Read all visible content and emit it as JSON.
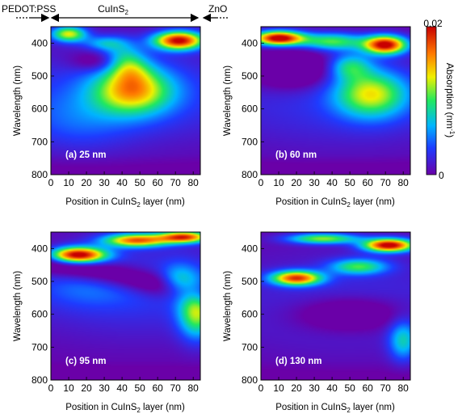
{
  "figure": {
    "layer_header": {
      "left": "PEDOT:PSS",
      "middle": "CuInS",
      "middle_sub": "2",
      "right": "ZnO"
    },
    "colorbar": {
      "max_label": "0.02",
      "min_label": "0",
      "title": "Absorption (nm",
      "title_sup": "-1",
      "title_end": ")"
    }
  },
  "chart_data": [
    {
      "type": "heatmap",
      "panel_label": "(a) 25 nm",
      "xlabel": "Position in CuInS",
      "xlabel_sub": "2",
      "xlabel_end": " layer (nm)",
      "ylabel": "Wavelength (nm)",
      "xlim": [
        0,
        84
      ],
      "ylim": [
        350,
        800
      ],
      "y_inverted": true,
      "xticks": [
        0,
        10,
        20,
        30,
        40,
        50,
        60,
        70,
        80
      ],
      "yticks": [
        400,
        500,
        600,
        700,
        800
      ],
      "zlim": [
        0,
        0.02
      ],
      "hotspots": [
        {
          "x": 72,
          "y": 390,
          "value": 0.02
        },
        {
          "x": 45,
          "y": 545,
          "value": 0.0118
        },
        {
          "x": 10,
          "y": 370,
          "value": 0.013
        }
      ]
    },
    {
      "type": "heatmap",
      "panel_label": "(b) 60 nm",
      "xlabel": "Position in CuInS",
      "xlabel_sub": "2",
      "xlabel_end": " layer (nm)",
      "ylabel": "Wavelength (nm)",
      "xlim": [
        0,
        84
      ],
      "ylim": [
        350,
        800
      ],
      "y_inverted": true,
      "xticks": [
        0,
        10,
        20,
        30,
        40,
        50,
        60,
        70,
        80
      ],
      "yticks": [
        400,
        500,
        600,
        700,
        800
      ],
      "zlim": [
        0,
        0.02
      ],
      "hotspots": [
        {
          "x": 10,
          "y": 385,
          "value": 0.02
        },
        {
          "x": 70,
          "y": 405,
          "value": 0.02
        },
        {
          "x": 62,
          "y": 555,
          "value": 0.0105
        }
      ]
    },
    {
      "type": "heatmap",
      "panel_label": "(c) 95 nm",
      "xlabel": "Position in CuInS",
      "xlabel_sub": "2",
      "xlabel_end": " layer (nm)",
      "ylabel": "Wavelength (nm)",
      "xlim": [
        0,
        84
      ],
      "ylim": [
        350,
        800
      ],
      "y_inverted": true,
      "xticks": [
        0,
        10,
        20,
        30,
        40,
        50,
        60,
        70,
        80
      ],
      "yticks": [
        400,
        500,
        600,
        700,
        800
      ],
      "zlim": [
        0,
        0.02
      ],
      "hotspots": [
        {
          "x": 15,
          "y": 420,
          "value": 0.02
        },
        {
          "x": 48,
          "y": 375,
          "value": 0.016
        },
        {
          "x": 82,
          "y": 580,
          "value": 0.0115
        }
      ]
    },
    {
      "type": "heatmap",
      "panel_label": "(d) 130 nm",
      "xlabel": "Position in CuInS",
      "xlabel_sub": "2",
      "xlabel_end": " layer (nm)",
      "ylabel": "Wavelength (nm)",
      "xlim": [
        0,
        84
      ],
      "ylim": [
        350,
        800
      ],
      "y_inverted": true,
      "xticks": [
        0,
        10,
        20,
        30,
        40,
        50,
        60,
        70,
        80
      ],
      "yticks": [
        400,
        500,
        600,
        700,
        800
      ],
      "zlim": [
        0,
        0.02
      ],
      "hotspots": [
        {
          "x": 72,
          "y": 390,
          "value": 0.02
        },
        {
          "x": 20,
          "y": 490,
          "value": 0.017
        },
        {
          "x": 82,
          "y": 680,
          "value": 0.006
        }
      ]
    }
  ]
}
